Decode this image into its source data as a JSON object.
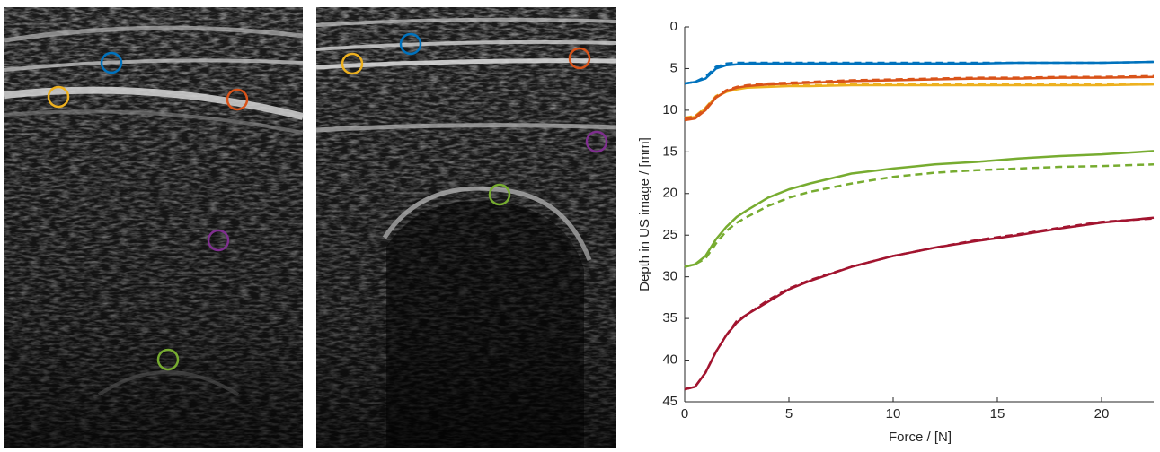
{
  "chart_data": {
    "type": "line",
    "xlabel": "Force / [N]",
    "ylabel": "Depth in US image / [mm]",
    "x": [
      0,
      0.5,
      1,
      1.5,
      2,
      2.5,
      3,
      4,
      5,
      6,
      8,
      10,
      12,
      14,
      16,
      18,
      20,
      22.5
    ],
    "xlim": [
      0,
      22.5
    ],
    "xticks": [
      0,
      5,
      10,
      15,
      20
    ],
    "ylim": [
      0,
      45
    ],
    "yticks": [
      0,
      5,
      10,
      15,
      20,
      25,
      30,
      35,
      40,
      45
    ],
    "y_reversed": true,
    "series": [
      {
        "color": "#0072bd",
        "dashed": false,
        "values": [
          6.8,
          6.6,
          6.2,
          5.0,
          4.6,
          4.5,
          4.4,
          4.4,
          4.4,
          4.4,
          4.4,
          4.4,
          4.4,
          4.4,
          4.3,
          4.3,
          4.3,
          4.2
        ]
      },
      {
        "color": "#0072bd",
        "dashed": true,
        "values": [
          6.8,
          6.6,
          6.0,
          4.8,
          4.4,
          4.3,
          4.3,
          4.3,
          4.3,
          4.3,
          4.3,
          4.3,
          4.3,
          4.3,
          4.3,
          4.3,
          4.3,
          4.2
        ]
      },
      {
        "color": "#edb120",
        "dashed": false,
        "values": [
          11.0,
          10.8,
          9.8,
          8.4,
          7.8,
          7.5,
          7.3,
          7.2,
          7.1,
          7.1,
          7.0,
          7.0,
          7.0,
          7.0,
          7.0,
          7.0,
          7.0,
          6.9
        ]
      },
      {
        "color": "#edb120",
        "dashed": true,
        "values": [
          10.9,
          10.7,
          9.7,
          8.3,
          7.7,
          7.4,
          7.2,
          7.1,
          7.0,
          7.0,
          6.9,
          6.9,
          6.9,
          6.9,
          6.9,
          6.9,
          6.9,
          6.9
        ]
      },
      {
        "color": "#d95319",
        "dashed": false,
        "values": [
          11.2,
          11.0,
          10.0,
          8.5,
          7.7,
          7.3,
          7.1,
          6.9,
          6.8,
          6.7,
          6.5,
          6.4,
          6.3,
          6.2,
          6.2,
          6.1,
          6.1,
          6.0
        ]
      },
      {
        "color": "#d95319",
        "dashed": true,
        "values": [
          11.0,
          10.8,
          9.8,
          8.4,
          7.6,
          7.2,
          7.0,
          6.8,
          6.7,
          6.6,
          6.4,
          6.3,
          6.2,
          6.1,
          6.1,
          6.0,
          6.0,
          5.9
        ]
      },
      {
        "color": "#77ac30",
        "dashed": false,
        "values": [
          28.8,
          28.5,
          27.5,
          25.5,
          24.0,
          22.8,
          22.0,
          20.5,
          19.5,
          18.8,
          17.6,
          17.0,
          16.5,
          16.2,
          15.8,
          15.5,
          15.3,
          14.9
        ]
      },
      {
        "color": "#77ac30",
        "dashed": true,
        "values": [
          28.8,
          28.5,
          27.8,
          26.0,
          24.5,
          23.5,
          22.8,
          21.5,
          20.5,
          19.8,
          18.8,
          18.0,
          17.5,
          17.2,
          17.0,
          16.8,
          16.7,
          16.5
        ]
      },
      {
        "color": "#a2142f",
        "dashed": false,
        "values": [
          43.5,
          43.2,
          41.5,
          39.0,
          37.0,
          35.5,
          34.5,
          33.0,
          31.5,
          30.5,
          28.8,
          27.5,
          26.5,
          25.7,
          25.0,
          24.2,
          23.5,
          22.9
        ]
      },
      {
        "color": "#a2142f",
        "dashed": true,
        "values": [
          43.5,
          43.2,
          41.5,
          39.0,
          37.0,
          35.3,
          34.5,
          32.8,
          31.4,
          30.4,
          28.8,
          27.5,
          26.5,
          25.6,
          24.9,
          24.1,
          23.4,
          23.0
        ]
      }
    ]
  }
}
